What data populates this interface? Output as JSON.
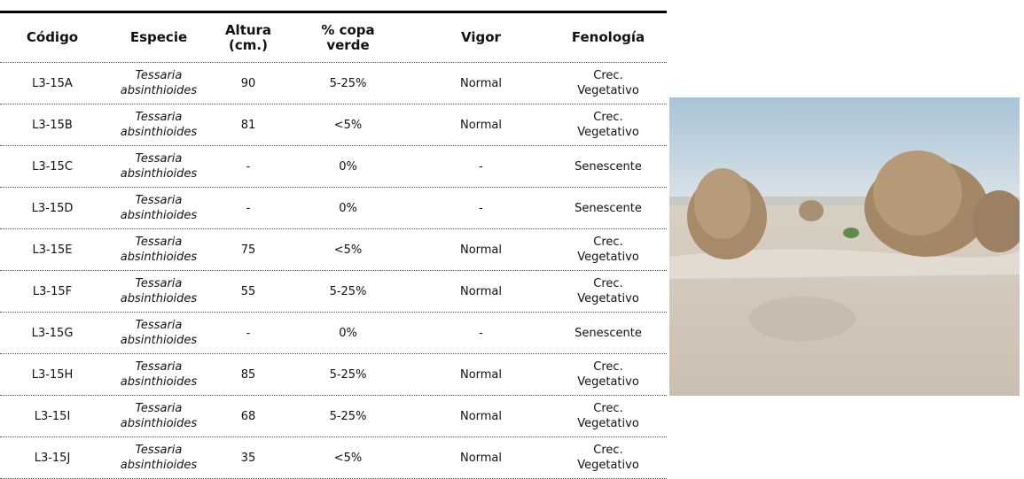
{
  "table": {
    "headers": [
      "Código",
      "Especie",
      "Altura\n(cm.)",
      "% copa\nverde",
      "Vigor",
      "Fenología"
    ],
    "rows": [
      [
        "L3-15A",
        "Tessaria\nabsinthioides",
        "90",
        "5-25%",
        "Normal",
        "Crec.\nVegetativo"
      ],
      [
        "L3-15B",
        "Tessaria\nabsinthioides",
        "81",
        "<5%",
        "Normal",
        "Crec.\nVegetativo"
      ],
      [
        "L3-15C",
        "Tessaria\nabsinthioides",
        "-",
        "0%",
        "-",
        "Senescente"
      ],
      [
        "L3-15D",
        "Tessaria\nabsinthioides",
        "-",
        "0%",
        "-",
        "Senescente"
      ],
      [
        "L3-15E",
        "Tessaria\nabsinthioides",
        "75",
        "<5%",
        "Normal",
        "Crec.\nVegetativo"
      ],
      [
        "L3-15F",
        "Tessaria\nabsinthioides",
        "55",
        "5-25%",
        "Normal",
        "Crec.\nVegetativo"
      ],
      [
        "L3-15G",
        "Tessaria\nabsinthioides",
        "-",
        "0%",
        "-",
        "Senescente"
      ],
      [
        "L3-15H",
        "Tessaria\nabsinthioides",
        "85",
        "5-25%",
        "Normal",
        "Crec.\nVegetativo"
      ],
      [
        "L3-15I",
        "Tessaria\nabsinthioides",
        "68",
        "5-25%",
        "Normal",
        "Crec.\nVegetativo"
      ],
      [
        "L3-15J",
        "Tessaria\nabsinthioides",
        "35",
        "<5%",
        "Normal",
        "Crec.\nVegetativo"
      ]
    ]
  }
}
